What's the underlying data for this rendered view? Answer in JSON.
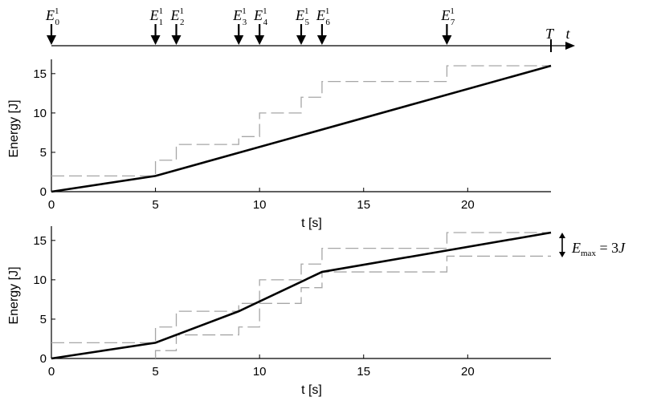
{
  "timeline": {
    "time_label": "t",
    "horizon_label": "T",
    "horizon_value": 24,
    "events": [
      {
        "base": "E",
        "sub": "0",
        "sup": "1",
        "t": 0
      },
      {
        "base": "E",
        "sub": "1",
        "sup": "1",
        "t": 5
      },
      {
        "base": "E",
        "sub": "2",
        "sup": "1",
        "t": 6
      },
      {
        "base": "E",
        "sub": "3",
        "sup": "1",
        "t": 9
      },
      {
        "base": "E",
        "sub": "4",
        "sup": "1",
        "t": 10
      },
      {
        "base": "E",
        "sub": "5",
        "sup": "1",
        "t": 12
      },
      {
        "base": "E",
        "sub": "6",
        "sup": "1",
        "t": 13
      },
      {
        "base": "E",
        "sub": "7",
        "sup": "1",
        "t": 19
      }
    ]
  },
  "annotation": {
    "base": "E",
    "sub": "max",
    "rest": " = 3",
    "unit": "J"
  },
  "chart_data": [
    {
      "type": "line",
      "title": "",
      "xlabel": "t [s]",
      "ylabel": "Energy [J]",
      "xlim": [
        0,
        24
      ],
      "ylim": [
        0,
        16
      ],
      "xticks": [
        0,
        5,
        10,
        15,
        20
      ],
      "yticks": [
        0,
        5,
        10,
        15
      ],
      "grid": false,
      "series": [
        {
          "style": "solid",
          "color": "#000000",
          "x": [
            0,
            5,
            24
          ],
          "y": [
            0,
            2,
            16
          ]
        },
        {
          "style": "dashed",
          "color": "#a6a6a6",
          "step": true,
          "x": [
            0,
            5,
            5,
            6,
            6,
            9,
            9,
            10,
            10,
            12,
            12,
            13,
            13,
            19,
            19,
            24
          ],
          "y": [
            2,
            2,
            4,
            4,
            6,
            6,
            7,
            7,
            10,
            10,
            12,
            12,
            14,
            14,
            16,
            16
          ]
        }
      ]
    },
    {
      "type": "line",
      "title": "",
      "xlabel": "t [s]",
      "ylabel": "Energy [J]",
      "xlim": [
        0,
        24
      ],
      "ylim": [
        0,
        16
      ],
      "xticks": [
        0,
        5,
        10,
        15,
        20
      ],
      "yticks": [
        0,
        5,
        10,
        15
      ],
      "grid": false,
      "series": [
        {
          "style": "solid",
          "color": "#000000",
          "x": [
            0,
            5,
            9,
            13,
            24
          ],
          "y": [
            0,
            2,
            6,
            11,
            16
          ]
        },
        {
          "style": "dashed",
          "color": "#a6a6a6",
          "step": true,
          "x": [
            0,
            5,
            5,
            6,
            6,
            9,
            9,
            10,
            10,
            12,
            12,
            13,
            13,
            19,
            19,
            24
          ],
          "y": [
            2,
            2,
            4,
            4,
            6,
            6,
            7,
            7,
            10,
            10,
            12,
            12,
            14,
            14,
            16,
            16
          ]
        },
        {
          "style": "dashed",
          "color": "#a6a6a6",
          "step": true,
          "x": [
            5,
            5,
            6,
            6,
            9,
            9,
            10,
            10,
            12,
            12,
            13,
            13,
            19,
            19,
            24
          ],
          "y": [
            0,
            1,
            1,
            3,
            3,
            4,
            4,
            7,
            7,
            9,
            9,
            11,
            11,
            13,
            13
          ]
        }
      ]
    }
  ]
}
